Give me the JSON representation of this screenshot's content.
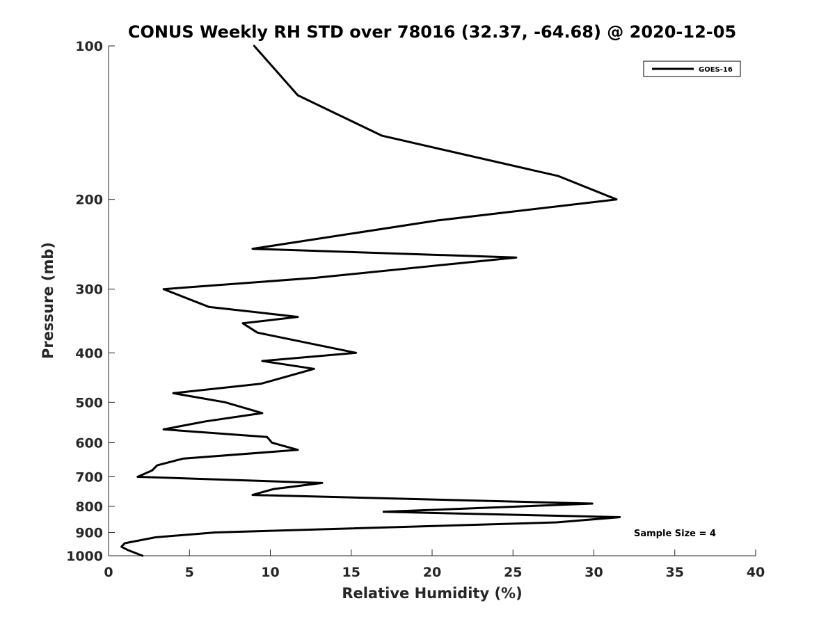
{
  "chart_data": {
    "type": "line",
    "title": "CONUS Weekly RH STD over 78016 (32.37, -64.68) @ 2020-12-05",
    "xlabel": "Relative Humidity (%)",
    "ylabel": "Pressure (mb)",
    "xlim": [
      0,
      40
    ],
    "ylim": [
      100,
      1000
    ],
    "y_scale": "log",
    "y_reversed": true,
    "x_ticks": [
      0,
      5,
      10,
      15,
      20,
      25,
      30,
      35,
      40
    ],
    "y_ticks": [
      100,
      200,
      300,
      400,
      500,
      600,
      700,
      800,
      900,
      1000
    ],
    "grid": false,
    "legend_position": "top-right",
    "annotation": "Sample Size = 4",
    "series": [
      {
        "name": "GOES-16",
        "color": "#000000",
        "points": [
          [
            9.0,
            100
          ],
          [
            11.7,
            125
          ],
          [
            16.9,
            150
          ],
          [
            27.8,
            180
          ],
          [
            31.4,
            200
          ],
          [
            20.3,
            220
          ],
          [
            8.9,
            250
          ],
          [
            25.2,
            260
          ],
          [
            12.8,
            285
          ],
          [
            3.4,
            300
          ],
          [
            6.2,
            325
          ],
          [
            11.7,
            340
          ],
          [
            8.3,
            350
          ],
          [
            9.2,
            365
          ],
          [
            15.3,
            400
          ],
          [
            9.5,
            415
          ],
          [
            12.7,
            430
          ],
          [
            9.4,
            460
          ],
          [
            4.0,
            480
          ],
          [
            7.2,
            500
          ],
          [
            9.5,
            525
          ],
          [
            6.0,
            545
          ],
          [
            3.4,
            565
          ],
          [
            9.8,
            585
          ],
          [
            10.1,
            600
          ],
          [
            11.7,
            620
          ],
          [
            4.6,
            645
          ],
          [
            3.0,
            665
          ],
          [
            2.7,
            680
          ],
          [
            1.8,
            700
          ],
          [
            13.2,
            720
          ],
          [
            10.2,
            740
          ],
          [
            8.9,
            760
          ],
          [
            29.9,
            790
          ],
          [
            17.0,
            820
          ],
          [
            31.6,
            840
          ],
          [
            27.7,
            860
          ],
          [
            6.6,
            900
          ],
          [
            2.9,
            920
          ],
          [
            1.0,
            945
          ],
          [
            0.8,
            960
          ],
          [
            1.2,
            975
          ],
          [
            2.1,
            1000
          ]
        ]
      }
    ]
  }
}
